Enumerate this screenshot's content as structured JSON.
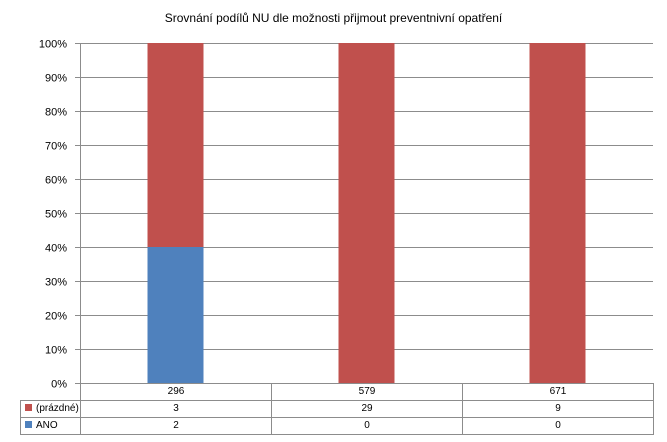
{
  "chart_data": {
    "type": "bar",
    "stacked": true,
    "percent_stacked": true,
    "title": "Srovnání podílů NU  dle možnosti přijmout preventnivní opatření",
    "categories": [
      "296",
      "579",
      "671"
    ],
    "y_ticks": [
      "0%",
      "10%",
      "20%",
      "30%",
      "40%",
      "50%",
      "60%",
      "70%",
      "80%",
      "90%",
      "100%"
    ],
    "ylim": [
      0,
      100
    ],
    "grid": true,
    "legend_position": "data table",
    "series": [
      {
        "name": "(prázdné)",
        "values": [
          3,
          29,
          9
        ],
        "color": "#c0504d"
      },
      {
        "name": "ANO",
        "values": [
          2,
          0,
          0
        ],
        "color": "#4f81bd"
      }
    ]
  }
}
